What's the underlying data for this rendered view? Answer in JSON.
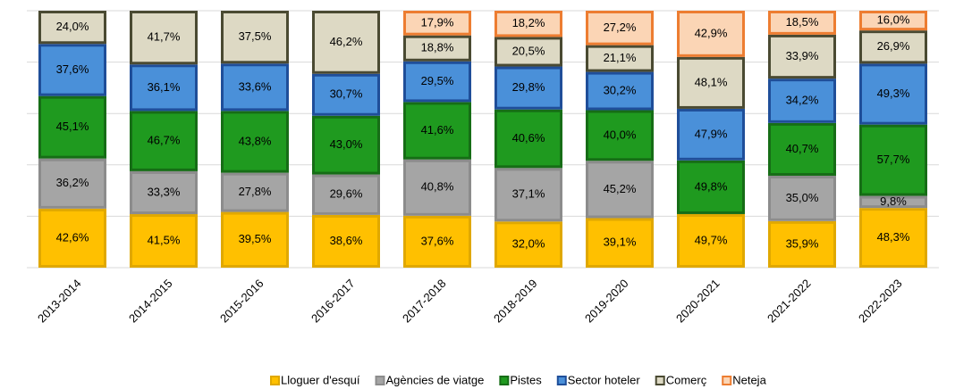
{
  "chart_data": {
    "type": "bar",
    "stacking": "percent",
    "categories": [
      "2013-2014",
      "2014-2015",
      "2015-2016",
      "2016-2017",
      "2017-2018",
      "2018-2019",
      "2019-2020",
      "2020-2021",
      "2021-2022",
      "2022-2023"
    ],
    "ylim": [
      0,
      100
    ],
    "yticks": [
      0,
      20,
      40,
      60,
      80,
      100
    ],
    "grid": true,
    "legend": "bottom",
    "series": [
      {
        "name": "Lloguer d'esquí",
        "color": "#ffc000",
        "edge": "#e0a800",
        "values": [
          42.6,
          41.5,
          39.5,
          38.6,
          37.6,
          32.0,
          39.1,
          49.7,
          35.9,
          48.3
        ],
        "value_labels": [
          "42,6%",
          "41,5%",
          "39,5%",
          "38,6%",
          "37,6%",
          "32,0%",
          "39,1%",
          "49,7%",
          "35,9%",
          "48,3%"
        ]
      },
      {
        "name": "Agències de viatge",
        "color": "#a5a5a5",
        "edge": "#8c8c8c",
        "values": [
          36.2,
          33.3,
          27.8,
          29.6,
          40.8,
          37.1,
          45.2,
          null,
          35.0,
          9.8
        ],
        "value_labels": [
          "36,2%",
          "33,3%",
          "27,8%",
          "29,6%",
          "40,8%",
          "37,1%",
          "45,2%",
          null,
          "35,0%",
          "9,8%"
        ]
      },
      {
        "name": "Pistes",
        "color": "#1f9a1f",
        "edge": "#166d16",
        "values": [
          45.1,
          46.7,
          43.8,
          43.0,
          41.6,
          40.6,
          40.0,
          49.8,
          40.7,
          57.7
        ],
        "value_labels": [
          "45,1%",
          "46,7%",
          "43,8%",
          "43,0%",
          "41,6%",
          "40,6%",
          "40,0%",
          "49,8%",
          "40,7%",
          "57,7%"
        ]
      },
      {
        "name": "Sector hoteler",
        "color": "#4a90d9",
        "edge": "#1f4e99",
        "values": [
          37.6,
          36.1,
          33.6,
          30.7,
          29.5,
          29.8,
          30.2,
          47.9,
          34.2,
          49.3
        ],
        "value_labels": [
          "37,6%",
          "36,1%",
          "33,6%",
          "30,7%",
          "29,5%",
          "29,8%",
          "30,2%",
          "47,9%",
          "34,2%",
          "49,3%"
        ]
      },
      {
        "name": "Comerç",
        "color": "#ddd9c4",
        "edge": "#4a4a32",
        "values": [
          24.0,
          41.7,
          37.5,
          46.2,
          18.8,
          20.5,
          21.1,
          48.1,
          33.9,
          26.9
        ],
        "value_labels": [
          "24,0%",
          "41,7%",
          "37,5%",
          "46,2%",
          "18,8%",
          "20,5%",
          "21,1%",
          "48,1%",
          "33,9%",
          "26,9%"
        ]
      },
      {
        "name": "Neteja",
        "color": "#fbd5b5",
        "edge": "#ed7d31",
        "values": [
          null,
          null,
          null,
          null,
          17.9,
          18.2,
          27.2,
          42.9,
          18.5,
          16.0
        ],
        "value_labels": [
          null,
          null,
          null,
          null,
          "17,9%",
          "18,2%",
          "27,2%",
          "42,9%",
          "18,5%",
          "16,0%"
        ]
      }
    ]
  }
}
